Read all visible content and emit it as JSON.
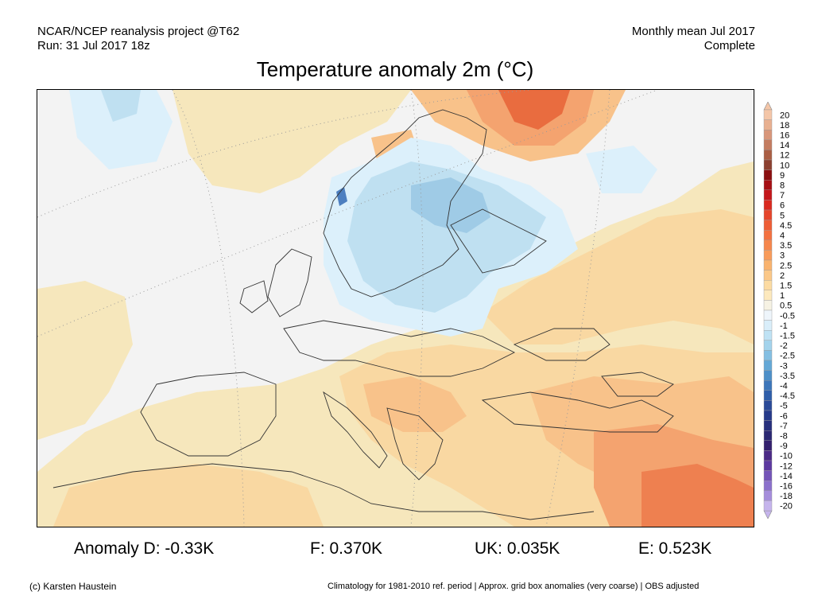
{
  "header": {
    "source": "NCAR/NCEP reanalysis project @T62",
    "run": "Run: 31 Jul 2017 18z",
    "period": "Monthly mean Jul 2017",
    "status": "Complete"
  },
  "title": "Temperature anomaly 2m (°C)",
  "legend": {
    "levels": [
      "20",
      "18",
      "16",
      "14",
      "12",
      "10",
      "9",
      "8",
      "7",
      "6",
      "5",
      "4.5",
      "4",
      "3.5",
      "3",
      "2.5",
      "2",
      "1.5",
      "1",
      "0.5",
      "-0.5",
      "-1",
      "-1.5",
      "-2",
      "-2.5",
      "-3",
      "-3.5",
      "-4",
      "-4.5",
      "-5",
      "-6",
      "-7",
      "-8",
      "-9",
      "-10",
      "-12",
      "-14",
      "-16",
      "-18",
      "-20"
    ],
    "colors": [
      "#f4c6a8",
      "#e8b090",
      "#d8967a",
      "#c47c60",
      "#aa5e44",
      "#8c4030",
      "#8b0f10",
      "#a60f14",
      "#c4161a",
      "#d9291f",
      "#e5452b",
      "#ee5d35",
      "#f37140",
      "#f6864c",
      "#f89b5a",
      "#f9b36e",
      "#fbc888",
      "#fcdba2",
      "#fde9bd",
      "#f6f2e3",
      "#eef5fb",
      "#d9eefa",
      "#bfe2f4",
      "#a3d3ec",
      "#84bfe2",
      "#64a8d6",
      "#4d8fc8",
      "#3c76ba",
      "#2f5ea9",
      "#2a4a98",
      "#263a8a",
      "#27307d",
      "#2b2873",
      "#34206e",
      "#4b2a86",
      "#5d39a0",
      "#7454b8",
      "#8b70cc",
      "#a58ddb",
      "#c5b4ec"
    ]
  },
  "stats": {
    "germany": "Anomaly D: -0.33K",
    "france": "F: 0.370K",
    "uk": "UK: 0.035K",
    "europe": "E: 0.523K"
  },
  "footer": {
    "credit": "(c) Karsten Haustein",
    "note": "Climatology for 1981-2010 ref. period | Approx. grid box anomalies (very coarse) | OBS adjusted"
  },
  "map_fill_colors": {
    "near_zero": "#f3f3f3",
    "warm_0_5": "#f6e7bc",
    "warm_1": "#f9d8a2",
    "warm_1_5": "#f8c28a",
    "warm_2": "#f4a36f",
    "warm_2_5": "#ee8050",
    "warm_3": "#e96c3f",
    "cool_0_5": "#dcf0fb",
    "cool_1": "#bfe0f1",
    "cool_1_5": "#9fcbe6",
    "cool_2": "#4d7fc0"
  }
}
